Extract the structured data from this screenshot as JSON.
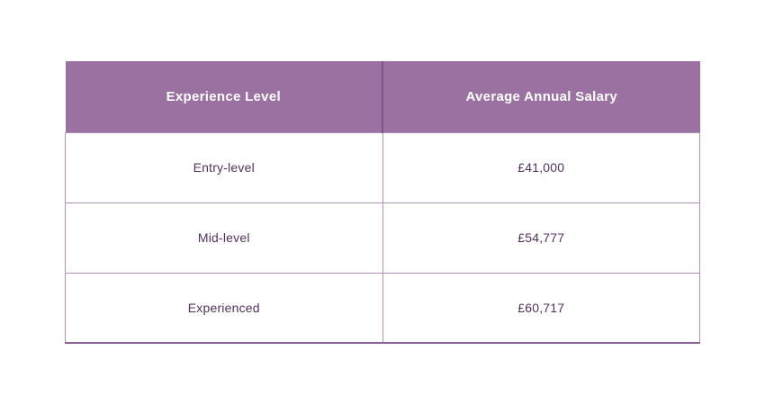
{
  "colors": {
    "header_background": "#9b71a1",
    "header_text": "#ffffff",
    "header_divider": "#7c5486",
    "body_text": "#53315f",
    "border": "#ad93b8",
    "page_background": "#ffffff"
  },
  "chart_data": {
    "type": "table",
    "columns": [
      "Experience Level",
      "Average Annual Salary"
    ],
    "rows": [
      [
        "Entry-level",
        "£41,000"
      ],
      [
        "Mid-level",
        "£54,777"
      ],
      [
        "Experienced",
        "£60,717"
      ]
    ],
    "title": "",
    "legend": "none",
    "grid": "on"
  }
}
